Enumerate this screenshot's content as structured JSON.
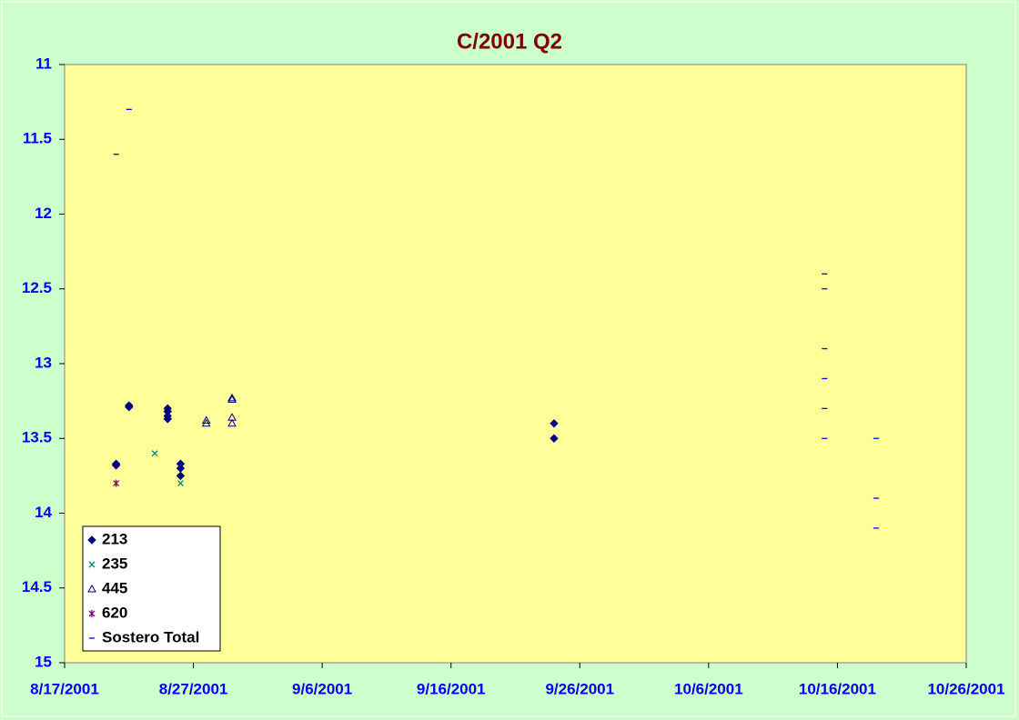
{
  "chart_data": {
    "type": "scatter",
    "title": "C/2001 Q2",
    "xlim": [
      "8/17/2001",
      "10/26/2001"
    ],
    "xticks": [
      "8/17/2001",
      "8/27/2001",
      "9/6/2001",
      "9/16/2001",
      "9/26/2001",
      "10/6/2001",
      "10/16/2001",
      "10/26/2001"
    ],
    "ylim": [
      11,
      15
    ],
    "y_reversed": true,
    "yticks": [
      11,
      11.5,
      12,
      12.5,
      13,
      13.5,
      14,
      14.5,
      15
    ],
    "legend": "lower left",
    "series": [
      {
        "name": "213",
        "marker": "diamond",
        "color": "#000080",
        "x": [
          "8/21/2001",
          "8/21/2001",
          "8/22/2001",
          "8/22/2001",
          "8/25/2001",
          "8/25/2001",
          "8/25/2001",
          "8/25/2001",
          "8/26/2001",
          "8/26/2001",
          "8/26/2001",
          "9/24/2001",
          "9/24/2001"
        ],
        "values": [
          13.67,
          13.68,
          13.28,
          13.29,
          13.3,
          13.32,
          13.35,
          13.37,
          13.67,
          13.7,
          13.75,
          13.4,
          13.5
        ]
      },
      {
        "name": "235",
        "marker": "x",
        "color": "#008080",
        "x": [
          "8/24/2001",
          "8/26/2001"
        ],
        "values": [
          13.6,
          13.8
        ]
      },
      {
        "name": "445",
        "marker": "triangle",
        "color": "#000080",
        "x": [
          "8/28/2001",
          "8/28/2001",
          "8/30/2001",
          "8/30/2001",
          "8/30/2001",
          "8/30/2001"
        ],
        "values": [
          13.38,
          13.4,
          13.23,
          13.24,
          13.36,
          13.4
        ]
      },
      {
        "name": "620",
        "marker": "star",
        "color": "#800080",
        "x": [
          "8/21/2001"
        ],
        "values": [
          13.8
        ]
      },
      {
        "name": "Sostero Total",
        "marker": "dash",
        "color": "#0000ff",
        "x": [
          "8/21/2001",
          "8/22/2001",
          "10/15/2001",
          "10/15/2001",
          "10/15/2001",
          "10/15/2001",
          "10/15/2001",
          "10/15/2001",
          "10/19/2001",
          "10/19/2001",
          "10/19/2001"
        ],
        "values": [
          11.6,
          11.3,
          12.4,
          12.5,
          12.9,
          13.1,
          13.3,
          13.5,
          13.5,
          13.9,
          14.1
        ]
      }
    ]
  }
}
